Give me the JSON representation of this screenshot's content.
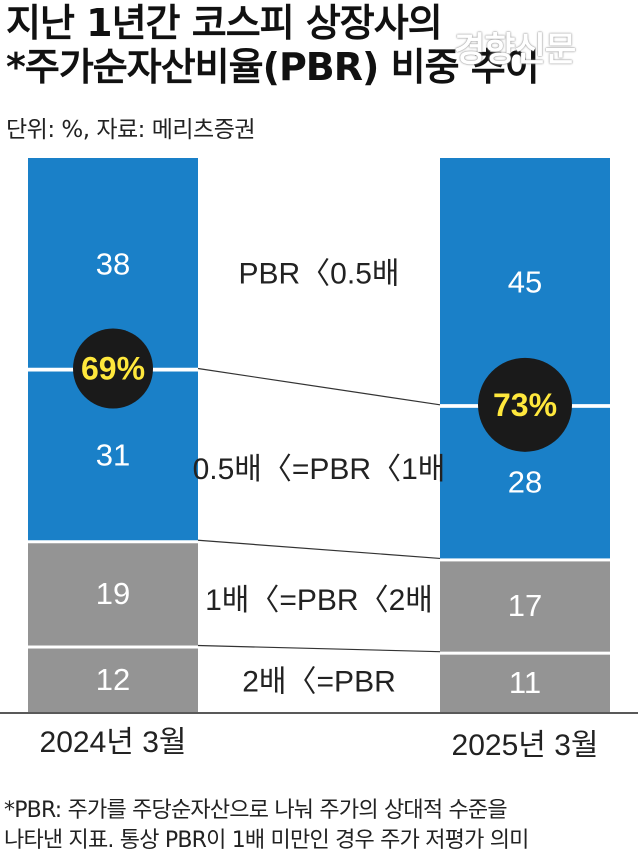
{
  "title_line1": "지난 1년간 코스피 상장사의",
  "title_line2": "*주가순자산비율(PBR) 비중 추이",
  "watermark": "경향신문",
  "unit_source": "단위: %, 자료: 메리츠증권",
  "footnote_line1": "*PBR: 주가를 주당순자산으로 나눠 주가의 상대적 수준을",
  "footnote_line2": "나타낸 지표. 통상 PBR이 1배 미만인 경우 주가 저평가 의미",
  "colors": {
    "blue": "#1a80c8",
    "gray": "#949494",
    "circle": "#1a1a1a",
    "circle_text": "#ffe83c"
  },
  "chart_data": {
    "type": "bar",
    "stacked": true,
    "categories": [
      "2024년 3월",
      "2025년 3월"
    ],
    "series": [
      {
        "name": "PBR〈0.5배",
        "values": [
          38,
          45
        ],
        "color": "#1a80c8"
      },
      {
        "name": "0.5배〈=PBR〈1배",
        "values": [
          31,
          28
        ],
        "color": "#1a80c8"
      },
      {
        "name": "1배〈=PBR〈2배",
        "values": [
          19,
          17
        ],
        "color": "#949494"
      },
      {
        "name": "2배〈=PBR",
        "values": [
          12,
          11
        ],
        "color": "#949494"
      }
    ],
    "annotations": [
      "69%",
      "73%"
    ]
  }
}
